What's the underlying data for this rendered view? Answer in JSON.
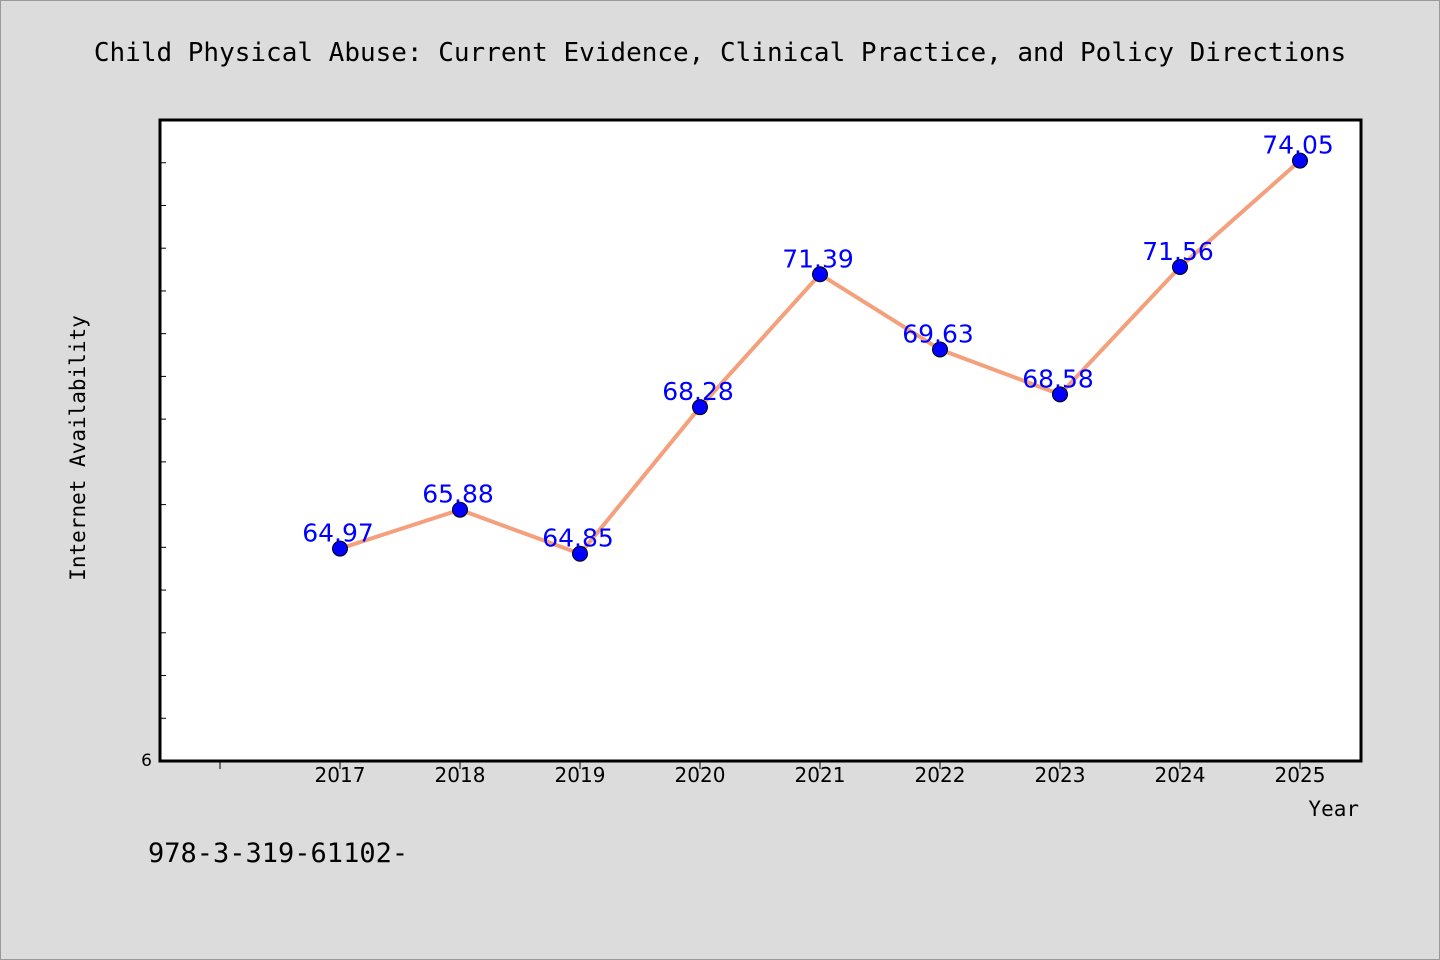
{
  "chart_data": {
    "type": "line",
    "title": "Child Physical Abuse: Current Evidence, Clinical Practice, and Policy Directions",
    "xlabel": "Year",
    "ylabel": "Internet Availability",
    "x": [
      "2017",
      "2018",
      "2019",
      "2020",
      "2021",
      "2022",
      "2023",
      "2024",
      "2025"
    ],
    "series": [
      {
        "values": [
          64.97,
          65.88,
          64.85,
          68.28,
          71.39,
          69.63,
          68.58,
          71.56,
          74.05
        ]
      }
    ],
    "data_labels": [
      "64.97",
      "65.88",
      "64.85",
      "68.28",
      "71.39",
      "69.63",
      "68.58",
      "71.56",
      "74.05"
    ],
    "y_tick_labels": [
      "6"
    ],
    "ylim": [
      60,
      75
    ],
    "grid": false,
    "colors": {
      "line": "#f4a07c",
      "marker": "#0000ff",
      "label": "#0000ff",
      "background": "#dcdcdc",
      "plot_bg": "#ffffff"
    }
  },
  "footer_text": "978-3-319-61102-"
}
